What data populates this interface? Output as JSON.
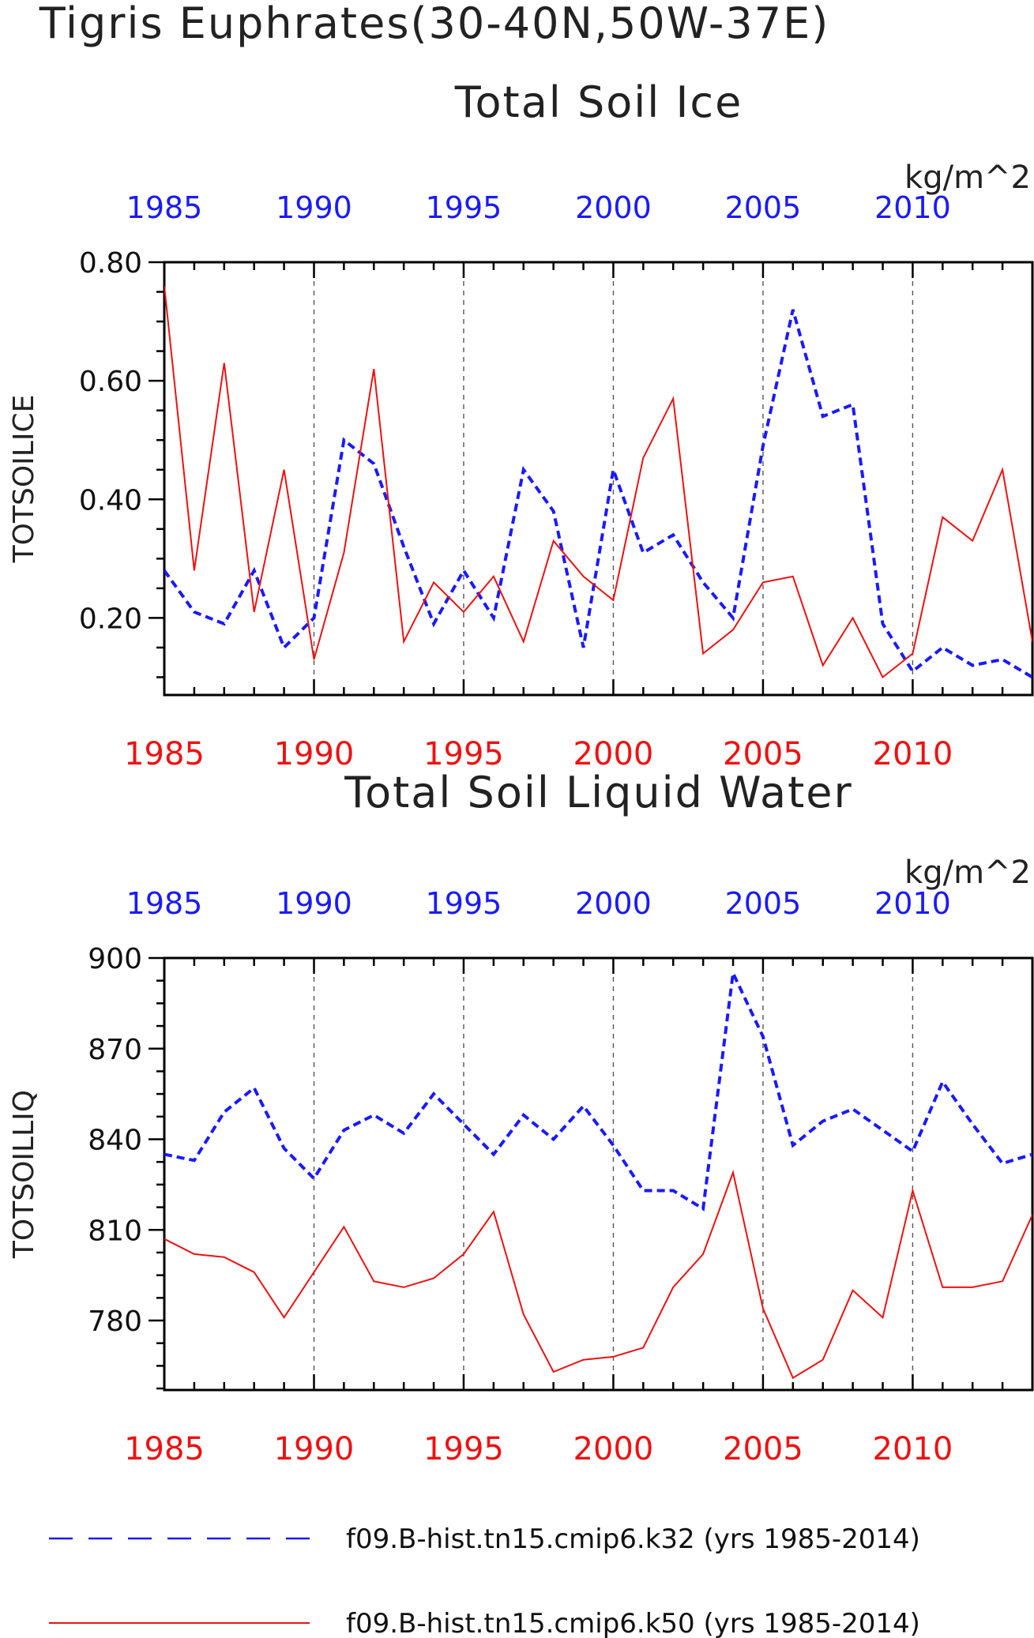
{
  "header": {
    "title": "Tigris Euphrates(30-40N,50W-37E)"
  },
  "colors": {
    "series1": "#1a1aff",
    "series2": "#ee1111",
    "axis": "#000000",
    "grid": "#555555"
  },
  "legend": {
    "entries": [
      {
        "label": "f09.B-hist.tn15.cmip6.k32 (yrs 1985-2014)",
        "color": "#1a1aff",
        "style": "dashed"
      },
      {
        "label": "f09.B-hist.tn15.cmip6.k50 (yrs 1985-2014)",
        "color": "#ee1111",
        "style": "solid"
      }
    ]
  },
  "chart_data": [
    {
      "type": "line",
      "title": "Total Soil Ice",
      "ylabel": "TOTSOILICE",
      "units": "kg/m^2",
      "xlim": [
        1985,
        2014
      ],
      "ylim": [
        0.07,
        0.8
      ],
      "yticks": [
        "0.20",
        "0.40",
        "0.60",
        "0.80"
      ],
      "ytick_values": [
        0.2,
        0.4,
        0.6,
        0.8
      ],
      "xticks": [
        "1985",
        "1990",
        "1995",
        "2000",
        "2005",
        "2010"
      ],
      "grid": "vertical dashed at major x ticks",
      "x": [
        1985,
        1986,
        1987,
        1988,
        1989,
        1990,
        1991,
        1992,
        1993,
        1994,
        1995,
        1996,
        1997,
        1998,
        1999,
        2000,
        2001,
        2002,
        2003,
        2004,
        2005,
        2006,
        2007,
        2008,
        2009,
        2010,
        2011,
        2012,
        2013,
        2014
      ],
      "series": [
        {
          "values": [
            0.28,
            0.21,
            0.19,
            0.28,
            0.15,
            0.2,
            0.5,
            0.46,
            0.32,
            0.19,
            0.28,
            0.2,
            0.45,
            0.38,
            0.15,
            0.45,
            0.31,
            0.34,
            0.26,
            0.2,
            0.49,
            0.72,
            0.54,
            0.56,
            0.19,
            0.11,
            0.15,
            0.12,
            0.13,
            0.1
          ]
        },
        {
          "values": [
            0.76,
            0.28,
            0.63,
            0.21,
            0.45,
            0.13,
            0.31,
            0.62,
            0.16,
            0.26,
            0.21,
            0.27,
            0.16,
            0.33,
            0.27,
            0.23,
            0.47,
            0.57,
            0.14,
            0.18,
            0.26,
            0.27,
            0.12,
            0.2,
            0.1,
            0.14,
            0.37,
            0.33,
            0.45,
            0.16
          ]
        }
      ]
    },
    {
      "type": "line",
      "title": "Total Soil Liquid Water",
      "ylabel": "TOTSOILLIQ",
      "units": "kg/m^2",
      "xlim": [
        1985,
        2014
      ],
      "ylim": [
        757,
        900
      ],
      "yticks": [
        "780",
        "810",
        "840",
        "870",
        "900"
      ],
      "ytick_values": [
        780,
        810,
        840,
        870,
        900
      ],
      "xticks": [
        "1985",
        "1990",
        "1995",
        "2000",
        "2005",
        "2010"
      ],
      "grid": "vertical dashed at major x ticks",
      "x": [
        1985,
        1986,
        1987,
        1988,
        1989,
        1990,
        1991,
        1992,
        1993,
        1994,
        1995,
        1996,
        1997,
        1998,
        1999,
        2000,
        2001,
        2002,
        2003,
        2004,
        2005,
        2006,
        2007,
        2008,
        2009,
        2010,
        2011,
        2012,
        2013,
        2014
      ],
      "series": [
        {
          "values": [
            835,
            833,
            849,
            857,
            837,
            827,
            843,
            848,
            842,
            855,
            845,
            835,
            848,
            840,
            851,
            838,
            823,
            823,
            817,
            895,
            874,
            838,
            846,
            850,
            843,
            836,
            859,
            845,
            832,
            835
          ]
        },
        {
          "values": [
            807,
            802,
            801,
            796,
            781,
            796,
            811,
            793,
            791,
            794,
            802,
            816,
            782,
            763,
            767,
            768,
            771,
            791,
            802,
            829,
            784,
            761,
            767,
            790,
            781,
            823,
            791,
            791,
            793,
            815
          ]
        }
      ]
    }
  ]
}
